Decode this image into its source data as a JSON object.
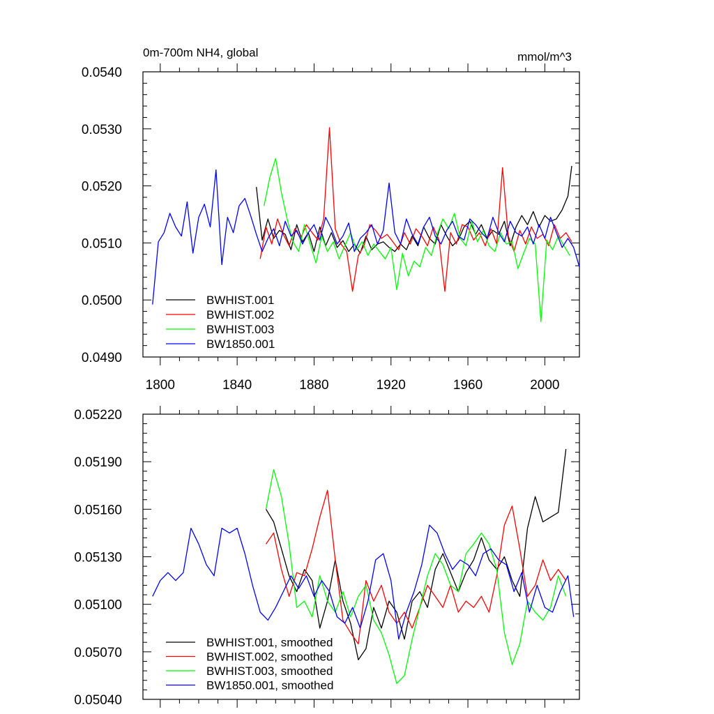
{
  "chart_data": [
    {
      "type": "line",
      "title": "0m-700m NH4, global",
      "units": "mmol/m^3",
      "xlim": [
        1791,
        2018
      ],
      "ylim": [
        0.049,
        0.054
      ],
      "x_ticks": [
        1800,
        1840,
        1880,
        1920,
        1960,
        2000
      ],
      "x_tick_labels": [
        "1800",
        "1840",
        "1880",
        "1920",
        "1960",
        "2000"
      ],
      "y_ticks": [
        0.049,
        0.05,
        0.051,
        0.052,
        0.053,
        0.054
      ],
      "y_tick_labels": [
        "0.0490",
        "0.0500",
        "0.0510",
        "0.0520",
        "0.0530",
        "0.0540"
      ],
      "legend_position": "bottom-left",
      "series": [
        {
          "name": "BWHIST.001",
          "color": "#000000",
          "x": [
            1850,
            1853,
            1856,
            1859,
            1862,
            1865,
            1868,
            1871,
            1874,
            1877,
            1880,
            1883,
            1886,
            1889,
            1892,
            1895,
            1898,
            1901,
            1904,
            1907,
            1910,
            1913,
            1916,
            1919,
            1922,
            1925,
            1928,
            1931,
            1934,
            1937,
            1940,
            1943,
            1946,
            1949,
            1952,
            1955,
            1958,
            1961,
            1964,
            1967,
            1970,
            1973,
            1976,
            1979,
            1982,
            1985,
            1988,
            1991,
            1994,
            1997,
            2000,
            2003,
            2006,
            2009,
            2012,
            2014
          ],
          "values": [
            0.05198,
            0.05105,
            0.05142,
            0.05108,
            0.05122,
            0.05115,
            0.05088,
            0.05132,
            0.05102,
            0.05118,
            0.05085,
            0.05128,
            0.05095,
            0.05118,
            0.05092,
            0.05104,
            0.05085,
            0.05098,
            0.05082,
            0.05112,
            0.05088,
            0.05098,
            0.05102,
            0.05092,
            0.05085,
            0.05098,
            0.05088,
            0.05112,
            0.05095,
            0.05128,
            0.05108,
            0.05098,
            0.05132,
            0.05112,
            0.05095,
            0.05105,
            0.05128,
            0.05138,
            0.05115,
            0.05132,
            0.05108,
            0.05122,
            0.05115,
            0.05138,
            0.05095,
            0.05128,
            0.05148,
            0.05132,
            0.05155,
            0.05128,
            0.05148,
            0.05138,
            0.05142,
            0.05158,
            0.05182,
            0.05235
          ]
        },
        {
          "name": "BWHIST.002",
          "color": "#ff0000",
          "x": [
            1852,
            1855,
            1858,
            1861,
            1864,
            1867,
            1870,
            1873,
            1876,
            1879,
            1882,
            1885,
            1888,
            1891,
            1894,
            1897,
            1900,
            1903,
            1906,
            1909,
            1912,
            1915,
            1918,
            1921,
            1924,
            1927,
            1930,
            1933,
            1936,
            1939,
            1942,
            1945,
            1948,
            1951,
            1954,
            1957,
            1960,
            1963,
            1966,
            1969,
            1972,
            1975,
            1978,
            1981,
            1984,
            1987,
            1990,
            1993,
            1996,
            1999,
            2002,
            2005,
            2008,
            2011,
            2014
          ],
          "values": [
            0.05072,
            0.05128,
            0.05098,
            0.05142,
            0.05115,
            0.05095,
            0.05125,
            0.05108,
            0.05132,
            0.05118,
            0.05105,
            0.05142,
            0.05302,
            0.05125,
            0.05098,
            0.05085,
            0.05015,
            0.05078,
            0.05095,
            0.05132,
            0.05122,
            0.05108,
            0.05115,
            0.05102,
            0.05088,
            0.05118,
            0.05098,
            0.05125,
            0.05112,
            0.05095,
            0.05128,
            0.05105,
            0.05015,
            0.05118,
            0.05098,
            0.05132,
            0.05128,
            0.05105,
            0.05118,
            0.05095,
            0.05125,
            0.05098,
            0.05232,
            0.05112,
            0.05085,
            0.05122,
            0.05098,
            0.05128,
            0.05108,
            0.05115,
            0.05095,
            0.05132,
            0.05108,
            0.05118,
            0.05102
          ]
        },
        {
          "name": "BWHIST.003",
          "color": "#00ff00",
          "x": [
            1854,
            1857,
            1860,
            1863,
            1866,
            1869,
            1872,
            1875,
            1878,
            1881,
            1884,
            1887,
            1890,
            1893,
            1896,
            1899,
            1902,
            1905,
            1908,
            1911,
            1914,
            1917,
            1920,
            1923,
            1926,
            1929,
            1932,
            1935,
            1938,
            1941,
            1944,
            1947,
            1950,
            1953,
            1956,
            1959,
            1962,
            1965,
            1968,
            1971,
            1974,
            1977,
            1980,
            1983,
            1986,
            1989,
            1992,
            1995,
            1998,
            2001,
            2004,
            2007,
            2010,
            2013
          ],
          "values": [
            0.05165,
            0.05215,
            0.05248,
            0.05188,
            0.05142,
            0.05102,
            0.05085,
            0.05132,
            0.05098,
            0.05065,
            0.05112,
            0.05085,
            0.05102,
            0.05072,
            0.05095,
            0.05118,
            0.05088,
            0.05102,
            0.05078,
            0.05098,
            0.05085,
            0.05072,
            0.05092,
            0.05018,
            0.05082,
            0.05042,
            0.05068,
            0.05058,
            0.05092,
            0.05078,
            0.05115,
            0.05142,
            0.05125,
            0.05152,
            0.05108,
            0.05095,
            0.05138,
            0.05102,
            0.05122,
            0.05095,
            0.05085,
            0.05118,
            0.05098,
            0.05102,
            0.05055,
            0.05082,
            0.05108,
            0.05098,
            0.04962,
            0.05105,
            0.05088,
            0.05112,
            0.05095,
            0.05078
          ]
        },
        {
          "name": "BW1850.001",
          "color": "#0000ff",
          "x": [
            1796,
            1799,
            1802,
            1805,
            1808,
            1811,
            1814,
            1817,
            1820,
            1823,
            1826,
            1829,
            1832,
            1835,
            1838,
            1841,
            1844,
            1847,
            1850,
            1853,
            1856,
            1859,
            1862,
            1865,
            1868,
            1871,
            1874,
            1877,
            1880,
            1883,
            1886,
            1889,
            1892,
            1895,
            1898,
            1901,
            1904,
            1907,
            1910,
            1913,
            1916,
            1919,
            1922,
            1925,
            1928,
            1931,
            1934,
            1937,
            1940,
            1943,
            1946,
            1949,
            1952,
            1955,
            1958,
            1961,
            1964,
            1967,
            1970,
            1973,
            1976,
            1979,
            1982,
            1985,
            1988,
            1991,
            1994,
            1997,
            2000,
            2003,
            2006,
            2009,
            2012,
            2015,
            2018
          ],
          "values": [
            0.04992,
            0.05102,
            0.05118,
            0.05152,
            0.05128,
            0.05112,
            0.05172,
            0.05082,
            0.05145,
            0.05168,
            0.05128,
            0.05228,
            0.05062,
            0.05145,
            0.05118,
            0.05165,
            0.05178,
            0.05148,
            0.05115,
            0.05085,
            0.05108,
            0.05125,
            0.05095,
            0.05138,
            0.05112,
            0.05122,
            0.05098,
            0.05118,
            0.05132,
            0.05105,
            0.05145,
            0.05125,
            0.05098,
            0.05112,
            0.05135,
            0.05085,
            0.05108,
            0.05118,
            0.05132,
            0.05098,
            0.05122,
            0.05205,
            0.05118,
            0.05098,
            0.05142,
            0.05115,
            0.05098,
            0.05128,
            0.05145,
            0.05112,
            0.05098,
            0.05122,
            0.05138,
            0.05112,
            0.05105,
            0.05142,
            0.05132,
            0.05118,
            0.05108,
            0.05145,
            0.05118,
            0.05102,
            0.05138,
            0.05118,
            0.05112,
            0.05128,
            0.05098,
            0.05132,
            0.05108,
            0.05145,
            0.05118,
            0.05092,
            0.05108,
            0.05092,
            0.05058
          ]
        }
      ]
    },
    {
      "type": "line",
      "xlim": [
        1791,
        2018
      ],
      "ylim": [
        0.0504,
        0.0522
      ],
      "y_ticks": [
        0.0504,
        0.0507,
        0.051,
        0.0513,
        0.0516,
        0.0519,
        0.0522
      ],
      "y_tick_labels": [
        "0.05040",
        "0.05070",
        "0.05100",
        "0.05130",
        "0.05160",
        "0.05190",
        "0.05220"
      ],
      "legend_position": "bottom-left",
      "series": [
        {
          "name": "BWHIST.001, smoothed",
          "color": "#000000",
          "x": [
            1855,
            1859,
            1863,
            1867,
            1871,
            1875,
            1879,
            1883,
            1887,
            1891,
            1895,
            1899,
            1903,
            1907,
            1911,
            1915,
            1919,
            1923,
            1927,
            1931,
            1935,
            1939,
            1943,
            1947,
            1951,
            1955,
            1959,
            1963,
            1967,
            1971,
            1975,
            1979,
            1983,
            1987,
            1991,
            1995,
            1999,
            2003,
            2007,
            2011
          ],
          "values": [
            0.0516,
            0.05152,
            0.05135,
            0.05118,
            0.05108,
            0.05122,
            0.05115,
            0.05085,
            0.05102,
            0.05128,
            0.05102,
            0.05088,
            0.05065,
            0.05072,
            0.05098,
            0.05085,
            0.05102,
            0.05095,
            0.05078,
            0.05102,
            0.05108,
            0.05098,
            0.05122,
            0.05132,
            0.0512,
            0.05108,
            0.0512,
            0.05128,
            0.05142,
            0.05128,
            0.05122,
            0.0513,
            0.05115,
            0.05105,
            0.05148,
            0.05168,
            0.05152,
            0.05155,
            0.05158,
            0.05198
          ]
        },
        {
          "name": "BWHIST.002, smoothed",
          "color": "#ff0000",
          "x": [
            1855,
            1859,
            1863,
            1867,
            1871,
            1875,
            1879,
            1883,
            1887,
            1891,
            1895,
            1899,
            1903,
            1907,
            1911,
            1915,
            1919,
            1923,
            1927,
            1931,
            1935,
            1939,
            1943,
            1947,
            1951,
            1955,
            1959,
            1963,
            1967,
            1971,
            1975,
            1979,
            1983,
            1987,
            1991,
            1995,
            1999,
            2003,
            2007,
            2011
          ],
          "values": [
            0.05138,
            0.05145,
            0.05122,
            0.05105,
            0.0512,
            0.05118,
            0.05135,
            0.05155,
            0.05172,
            0.05128,
            0.0509,
            0.05082,
            0.05075,
            0.05115,
            0.05102,
            0.05112,
            0.05095,
            0.05088,
            0.05095,
            0.05085,
            0.05098,
            0.05112,
            0.05105,
            0.05098,
            0.05112,
            0.05095,
            0.05102,
            0.05098,
            0.05105,
            0.05095,
            0.05118,
            0.0515,
            0.05162,
            0.05135,
            0.05105,
            0.05112,
            0.05128,
            0.05115,
            0.05122,
            0.05115
          ]
        },
        {
          "name": "BWHIST.003, smoothed",
          "color": "#00ff00",
          "x": [
            1855,
            1859,
            1863,
            1867,
            1871,
            1875,
            1879,
            1883,
            1887,
            1891,
            1895,
            1899,
            1903,
            1907,
            1911,
            1915,
            1919,
            1923,
            1927,
            1931,
            1935,
            1939,
            1943,
            1947,
            1951,
            1955,
            1959,
            1963,
            1967,
            1971,
            1975,
            1979,
            1983,
            1987,
            1991,
            1995,
            1999,
            2003,
            2007,
            2011
          ],
          "values": [
            0.0516,
            0.05185,
            0.05168,
            0.05138,
            0.05098,
            0.05102,
            0.05092,
            0.05118,
            0.05102,
            0.05095,
            0.05108,
            0.05092,
            0.05105,
            0.05112,
            0.0509,
            0.05082,
            0.05068,
            0.0505,
            0.05055,
            0.05078,
            0.05098,
            0.05118,
            0.05132,
            0.05125,
            0.05112,
            0.05108,
            0.05132,
            0.05138,
            0.05145,
            0.05138,
            0.05122,
            0.05082,
            0.05062,
            0.05075,
            0.05102,
            0.05095,
            0.0509,
            0.05098,
            0.05118,
            0.05105
          ]
        },
        {
          "name": "BW1850.001, smoothed",
          "color": "#0000ff",
          "x": [
            1796,
            1800,
            1804,
            1808,
            1812,
            1816,
            1820,
            1824,
            1828,
            1832,
            1836,
            1840,
            1844,
            1848,
            1852,
            1856,
            1860,
            1864,
            1868,
            1872,
            1876,
            1880,
            1884,
            1888,
            1892,
            1896,
            1900,
            1904,
            1908,
            1912,
            1916,
            1920,
            1924,
            1928,
            1932,
            1936,
            1940,
            1944,
            1948,
            1952,
            1956,
            1960,
            1964,
            1968,
            1972,
            1976,
            1980,
            1984,
            1988,
            1992,
            1996,
            2000,
            2004,
            2008,
            2012,
            2015
          ],
          "values": [
            0.05105,
            0.05115,
            0.0512,
            0.05115,
            0.0512,
            0.05148,
            0.05138,
            0.05125,
            0.05118,
            0.05148,
            0.05145,
            0.05148,
            0.05132,
            0.05112,
            0.05095,
            0.0509,
            0.05098,
            0.05108,
            0.05118,
            0.0511,
            0.05118,
            0.05105,
            0.05115,
            0.05108,
            0.05092,
            0.05088,
            0.05098,
            0.05085,
            0.05102,
            0.05128,
            0.05132,
            0.05115,
            0.05078,
            0.05095,
            0.05108,
            0.05125,
            0.0515,
            0.05145,
            0.05132,
            0.05122,
            0.05128,
            0.05125,
            0.05118,
            0.05132,
            0.05135,
            0.05128,
            0.05125,
            0.05108,
            0.0512,
            0.05095,
            0.05112,
            0.05098,
            0.05095,
            0.05108,
            0.05118,
            0.05092
          ]
        }
      ]
    }
  ]
}
